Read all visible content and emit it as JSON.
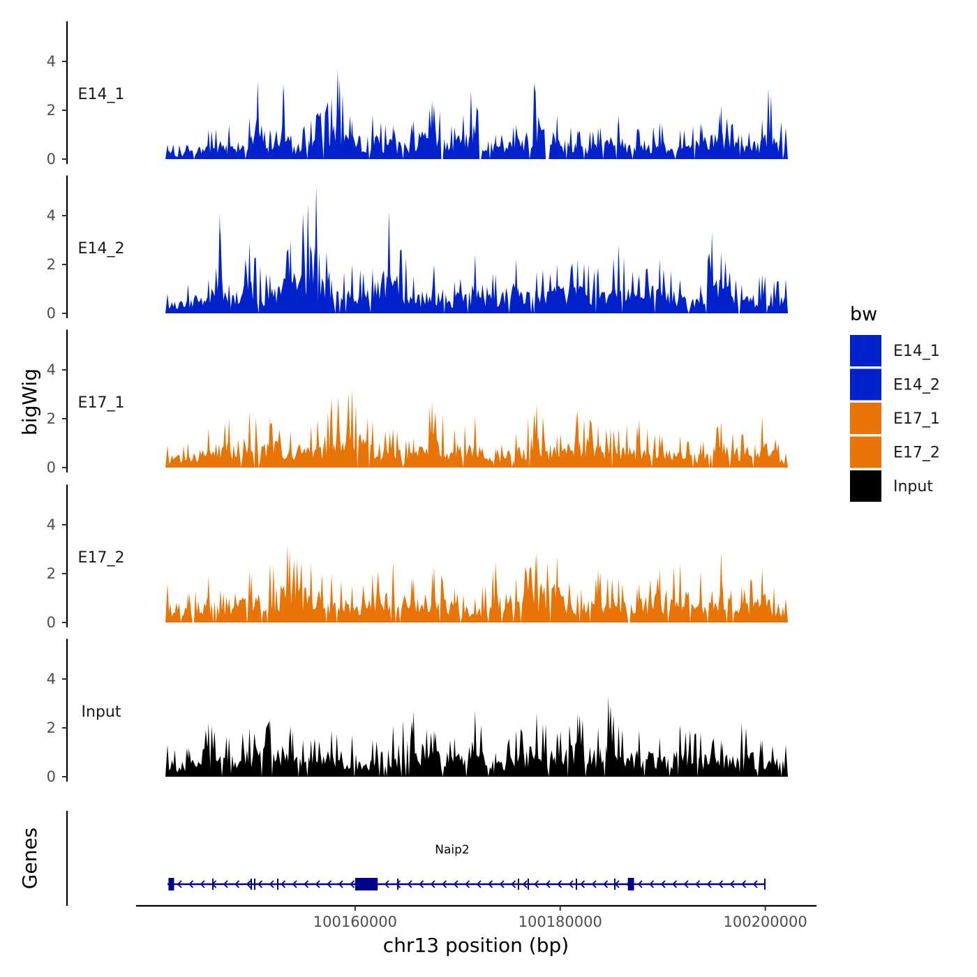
{
  "chart_data": {
    "type": "area",
    "chromosome": "chr13",
    "xlabel": "chr13 position (bp)",
    "ylabel": "bigWig",
    "x_ticks": [
      100160000,
      100180000,
      100200000
    ],
    "x_tick_labels": [
      "100160000",
      "100180000",
      "100200000"
    ],
    "x_range": [
      100141700,
      100202000
    ],
    "y_ticks": [
      0,
      2,
      4
    ],
    "y_tick_labels": [
      "0",
      "2",
      "4"
    ],
    "ylim": [
      0,
      5.5
    ],
    "legend_title": "bw",
    "legend": [
      {
        "name": "E14_1",
        "color": "#0022CC"
      },
      {
        "name": "E14_2",
        "color": "#0022CC"
      },
      {
        "name": "E17_1",
        "color": "#E87405"
      },
      {
        "name": "E17_2",
        "color": "#E87405"
      },
      {
        "name": "Input",
        "color": "#000000"
      }
    ],
    "tracks": [
      {
        "name": "E14_1",
        "color": "#0022CC",
        "x": [
          100141700,
          100143700,
          100145700,
          100147700,
          100149700,
          100150500,
          100151700,
          100153000,
          100153700,
          100155700,
          100157700,
          100158300,
          100159700,
          100161700,
          100163700,
          100165700,
          100167500,
          100169700,
          100171300,
          100173700,
          100175700,
          100177500,
          100179700,
          100181700,
          100183700,
          100185700,
          100187700,
          100189700,
          100191700,
          100193700,
          100195700,
          100197700,
          100199700,
          100200300,
          100202000
        ],
        "values": [
          0.6,
          0.6,
          1.2,
          1.4,
          1.7,
          3.2,
          1.2,
          3.1,
          1.0,
          1.6,
          2.5,
          3.7,
          1.6,
          1.8,
          1.4,
          1.6,
          2.4,
          1.3,
          2.8,
          1.0,
          1.4,
          3.2,
          1.8,
          1.2,
          1.3,
          1.8,
          1.3,
          1.5,
          1.2,
          1.5,
          2.2,
          1.0,
          1.6,
          2.9,
          1.3
        ]
      },
      {
        "name": "E14_2",
        "color": "#0022CC",
        "x": [
          100141700,
          100143700,
          100145700,
          100146800,
          100147700,
          100149700,
          100151700,
          100153700,
          100155400,
          100156200,
          100157700,
          100159700,
          100161700,
          100163300,
          100165700,
          100167700,
          100169700,
          100171700,
          100173700,
          100175700,
          100177700,
          100179700,
          100181700,
          100183700,
          100185700,
          100187700,
          100189700,
          100191700,
          100193700,
          100194800,
          100195700,
          100197700,
          100199700,
          100202000
        ],
        "values": [
          0.8,
          1.2,
          1.4,
          4.1,
          1.2,
          2.9,
          1.6,
          3.0,
          4.5,
          5.2,
          1.4,
          2.0,
          1.8,
          4.2,
          1.5,
          2.0,
          1.3,
          2.4,
          1.6,
          2.2,
          1.7,
          2.0,
          2.2,
          1.9,
          2.8,
          1.6,
          2.2,
          1.4,
          1.2,
          3.3,
          2.5,
          1.2,
          1.6,
          1.4
        ]
      },
      {
        "name": "E17_1",
        "color": "#E87405",
        "x": [
          100141700,
          100143700,
          100145700,
          100147700,
          100149700,
          100151700,
          100153700,
          100155700,
          100157700,
          100159700,
          100161700,
          100163700,
          100165700,
          100167500,
          100169700,
          100171700,
          100173700,
          100175700,
          100177700,
          100179700,
          100181700,
          100183700,
          100185700,
          100187700,
          100189700,
          100191700,
          100193700,
          100195700,
          100197700,
          100199700,
          100202000
        ],
        "values": [
          0.9,
          1.0,
          1.6,
          2.0,
          2.3,
          2.1,
          1.5,
          1.7,
          2.9,
          3.2,
          1.9,
          1.6,
          1.2,
          2.7,
          1.6,
          2.1,
          0.8,
          1.4,
          2.6,
          1.3,
          2.4,
          1.7,
          1.6,
          2.0,
          1.4,
          1.3,
          1.0,
          1.9,
          1.4,
          2.1,
          0.6
        ]
      },
      {
        "name": "E17_2",
        "color": "#E87405",
        "x": [
          100141700,
          100143700,
          100145700,
          100147700,
          100149700,
          100151700,
          100153400,
          100155700,
          100157700,
          100159700,
          100161700,
          100163700,
          100165700,
          100167700,
          100169700,
          100171700,
          100173700,
          100175700,
          100177700,
          100179700,
          100181700,
          100183700,
          100185700,
          100187700,
          100189700,
          100191700,
          100193700,
          100195700,
          100197700,
          100199700,
          100202000
        ],
        "values": [
          1.6,
          1.2,
          1.9,
          1.0,
          2.1,
          2.4,
          3.2,
          2.4,
          2.0,
          1.5,
          2.0,
          2.5,
          1.8,
          2.3,
          1.4,
          1.0,
          2.5,
          1.8,
          2.9,
          2.7,
          1.2,
          2.2,
          1.8,
          1.6,
          2.2,
          2.4,
          2.1,
          2.9,
          1.5,
          2.2,
          1.0
        ]
      },
      {
        "name": "Input",
        "color": "#000000",
        "x": [
          100141700,
          100143700,
          100145700,
          100147700,
          100149700,
          100151700,
          100153700,
          100155700,
          100157700,
          100159700,
          100161700,
          100163700,
          100165700,
          100167700,
          100169700,
          100171700,
          100173700,
          100175700,
          100177700,
          100179700,
          100181700,
          100183700,
          100184700,
          100185700,
          100187700,
          100189700,
          100191700,
          100193700,
          100195700,
          100197700,
          100199700,
          100202000
        ],
        "values": [
          1.3,
          1.2,
          2.2,
          1.6,
          2.0,
          2.4,
          2.1,
          1.5,
          1.9,
          1.7,
          1.5,
          2.1,
          2.7,
          1.9,
          1.6,
          2.7,
          1.0,
          1.9,
          2.6,
          1.8,
          2.6,
          2.0,
          3.3,
          2.1,
          1.9,
          1.6,
          2.1,
          1.8,
          1.5,
          2.2,
          1.5,
          1.3
        ]
      }
    ],
    "genes_track": {
      "label": "Genes",
      "gene_name": "Naip2",
      "strand": "-",
      "start": 100141700,
      "end": 100202000,
      "exons": [
        {
          "start": 100141800,
          "end": 100142300
        },
        {
          "start": 100160000,
          "end": 100162200
        },
        {
          "start": 100186600,
          "end": 100187200
        }
      ]
    }
  }
}
